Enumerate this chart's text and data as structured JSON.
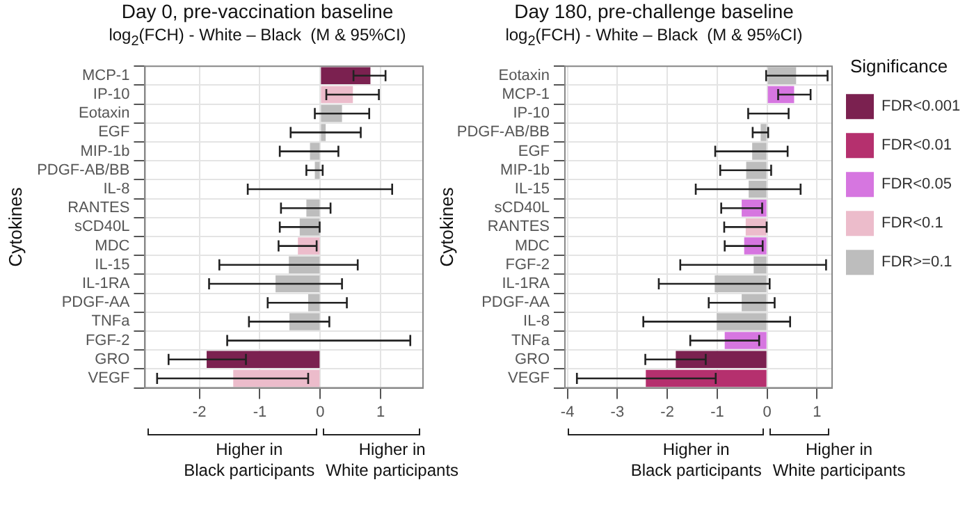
{
  "chart_data": [
    {
      "type": "bar",
      "orientation": "horizontal",
      "stacked": true,
      "title": "Day 0, pre-vaccination baseline",
      "subtitle": "log$_{2}$(FCH) - White – Black  (M & 95%CI)",
      "ylabel": "Cytokines",
      "categories": [
        "MCP-1",
        "IP-10",
        "Eotaxin",
        "EGF",
        "MIP-1b",
        "PDGF-AB/BB",
        "IL-8",
        "RANTES",
        "sCD40L",
        "MDC",
        "IL-15",
        "IL-1RA",
        "PDGF-AA",
        "TNFa",
        "FGF-2",
        "GRO",
        "VEGF"
      ],
      "series": [
        {
          "color": "#7b2150",
          "values": [
            0.83,
            null,
            null,
            null,
            null,
            null,
            null,
            null,
            null,
            null,
            null,
            null,
            null,
            null,
            null,
            -1.88,
            null
          ],
          "errors": [
            [
              0.55,
              1.08
            ],
            null,
            null,
            null,
            null,
            null,
            null,
            null,
            null,
            null,
            null,
            null,
            null,
            null,
            null,
            [
              -2.51,
              -1.23
            ],
            null
          ]
        },
        {
          "color": "#ecbccb",
          "values": [
            null,
            0.54,
            null,
            null,
            null,
            null,
            null,
            null,
            null,
            -0.37,
            null,
            null,
            null,
            null,
            null,
            null,
            -1.44
          ],
          "errors": [
            null,
            [
              0.1,
              0.97
            ],
            null,
            null,
            null,
            null,
            null,
            null,
            null,
            [
              -0.69,
              -0.06
            ],
            null,
            null,
            null,
            null,
            null,
            null,
            [
              -2.7,
              -0.2
            ]
          ]
        },
        {
          "color": "#bdbdbd",
          "values": [
            null,
            null,
            0.36,
            0.09,
            -0.17,
            -0.09,
            0,
            -0.23,
            -0.34,
            null,
            -0.52,
            -0.74,
            -0.2,
            -0.51,
            0,
            null,
            null
          ],
          "errors": [
            null,
            null,
            [
              -0.09,
              0.81
            ],
            [
              -0.49,
              0.67
            ],
            [
              -0.67,
              0.3
            ],
            [
              -0.23,
              0.04
            ],
            [
              -1.2,
              1.19
            ],
            [
              -0.65,
              0.17
            ],
            [
              -0.67,
              -0.01
            ],
            null,
            [
              -1.67,
              0.62
            ],
            [
              -1.84,
              0.36
            ],
            [
              -0.87,
              0.44
            ],
            [
              -1.18,
              0.15
            ],
            [
              -1.54,
              1.49
            ],
            null,
            null
          ]
        }
      ],
      "xlim": [
        -2.9,
        1.7
      ],
      "xticks": [
        -2,
        -1,
        0,
        1
      ],
      "grid": true,
      "legend": false,
      "annotations": [
        "Higher in\nBlack participants",
        "Higher in\nWhite participants"
      ]
    },
    {
      "type": "bar",
      "orientation": "horizontal",
      "stacked": true,
      "title": "Day 180, pre-challenge baseline",
      "subtitle": "log$_{2}$(FCH) - White – Black  (M & 95%CI)",
      "ylabel": "Cytokines",
      "categories": [
        "Eotaxin",
        "MCP-1",
        "IP-10",
        "PDGF-AB/BB",
        "EGF",
        "MIP-1b",
        "IL-15",
        "sCD40L",
        "RANTES",
        "MDC",
        "FGF-2",
        "IL-1RA",
        "PDGF-AA",
        "IL-8",
        "TNFa",
        "GRO",
        "VEGF"
      ],
      "series": [
        {
          "name": "FDR<0.001",
          "color": "#7b2150",
          "values": [
            null,
            null,
            null,
            null,
            null,
            null,
            null,
            null,
            null,
            null,
            null,
            null,
            null,
            null,
            null,
            -1.83,
            null
          ],
          "errors": [
            null,
            null,
            null,
            null,
            null,
            null,
            null,
            null,
            null,
            null,
            null,
            null,
            null,
            null,
            null,
            [
              -2.44,
              -1.23
            ],
            null
          ]
        },
        {
          "name": "FDR<0.01",
          "color": "#b5306e",
          "values": [
            null,
            null,
            null,
            null,
            null,
            null,
            null,
            null,
            null,
            null,
            null,
            null,
            null,
            null,
            null,
            null,
            -2.43
          ],
          "errors": [
            null,
            null,
            null,
            null,
            null,
            null,
            null,
            null,
            null,
            null,
            null,
            null,
            null,
            null,
            null,
            null,
            [
              -3.81,
              -1.03
            ]
          ]
        },
        {
          "name": "FDR<0.05",
          "color": "#d676e0",
          "values": [
            null,
            0.54,
            null,
            null,
            null,
            null,
            null,
            -0.51,
            null,
            -0.46,
            null,
            null,
            null,
            null,
            -0.85,
            null,
            null
          ],
          "errors": [
            null,
            [
              0.22,
              0.87
            ],
            null,
            null,
            null,
            null,
            null,
            [
              -0.92,
              -0.1
            ],
            null,
            [
              -0.85,
              -0.09
            ],
            null,
            null,
            null,
            null,
            [
              -1.54,
              -0.16
            ],
            null,
            null
          ]
        },
        {
          "name": "FDR<0.1",
          "color": "#ecbccb",
          "values": [
            null,
            null,
            null,
            null,
            null,
            null,
            null,
            null,
            -0.43,
            null,
            null,
            null,
            null,
            null,
            null,
            null,
            null
          ],
          "errors": [
            null,
            null,
            null,
            null,
            null,
            null,
            null,
            null,
            [
              -0.86,
              -0.01
            ],
            null,
            null,
            null,
            null,
            null,
            null,
            null,
            null
          ]
        },
        {
          "name": "FDR>=0.1",
          "color": "#bdbdbd",
          "values": [
            0.58,
            null,
            0,
            -0.13,
            -0.3,
            -0.42,
            -0.37,
            null,
            null,
            null,
            -0.27,
            -1.05,
            -0.51,
            -1.01,
            null,
            null,
            null
          ],
          "errors": [
            [
              -0.02,
              1.21
            ],
            null,
            [
              -0.38,
              0.43
            ],
            [
              -0.29,
              0.02
            ],
            [
              -1.04,
              0.41
            ],
            [
              -0.94,
              0.08
            ],
            [
              -1.43,
              0.67
            ],
            null,
            null,
            null,
            [
              -1.74,
              1.18
            ],
            [
              -2.17,
              0.05
            ],
            [
              -1.17,
              0.15
            ],
            [
              -2.48,
              0.46
            ],
            null,
            null,
            null
          ]
        }
      ],
      "xlim": [
        -4.05,
        1.3
      ],
      "xticks": [
        -4,
        -3,
        -2,
        -1,
        0,
        1
      ],
      "grid": true,
      "legend": "right",
      "legend_title": "Significance",
      "annotations": [
        "Higher in\nBlack participants",
        "Higher in\nWhite participants"
      ]
    }
  ]
}
